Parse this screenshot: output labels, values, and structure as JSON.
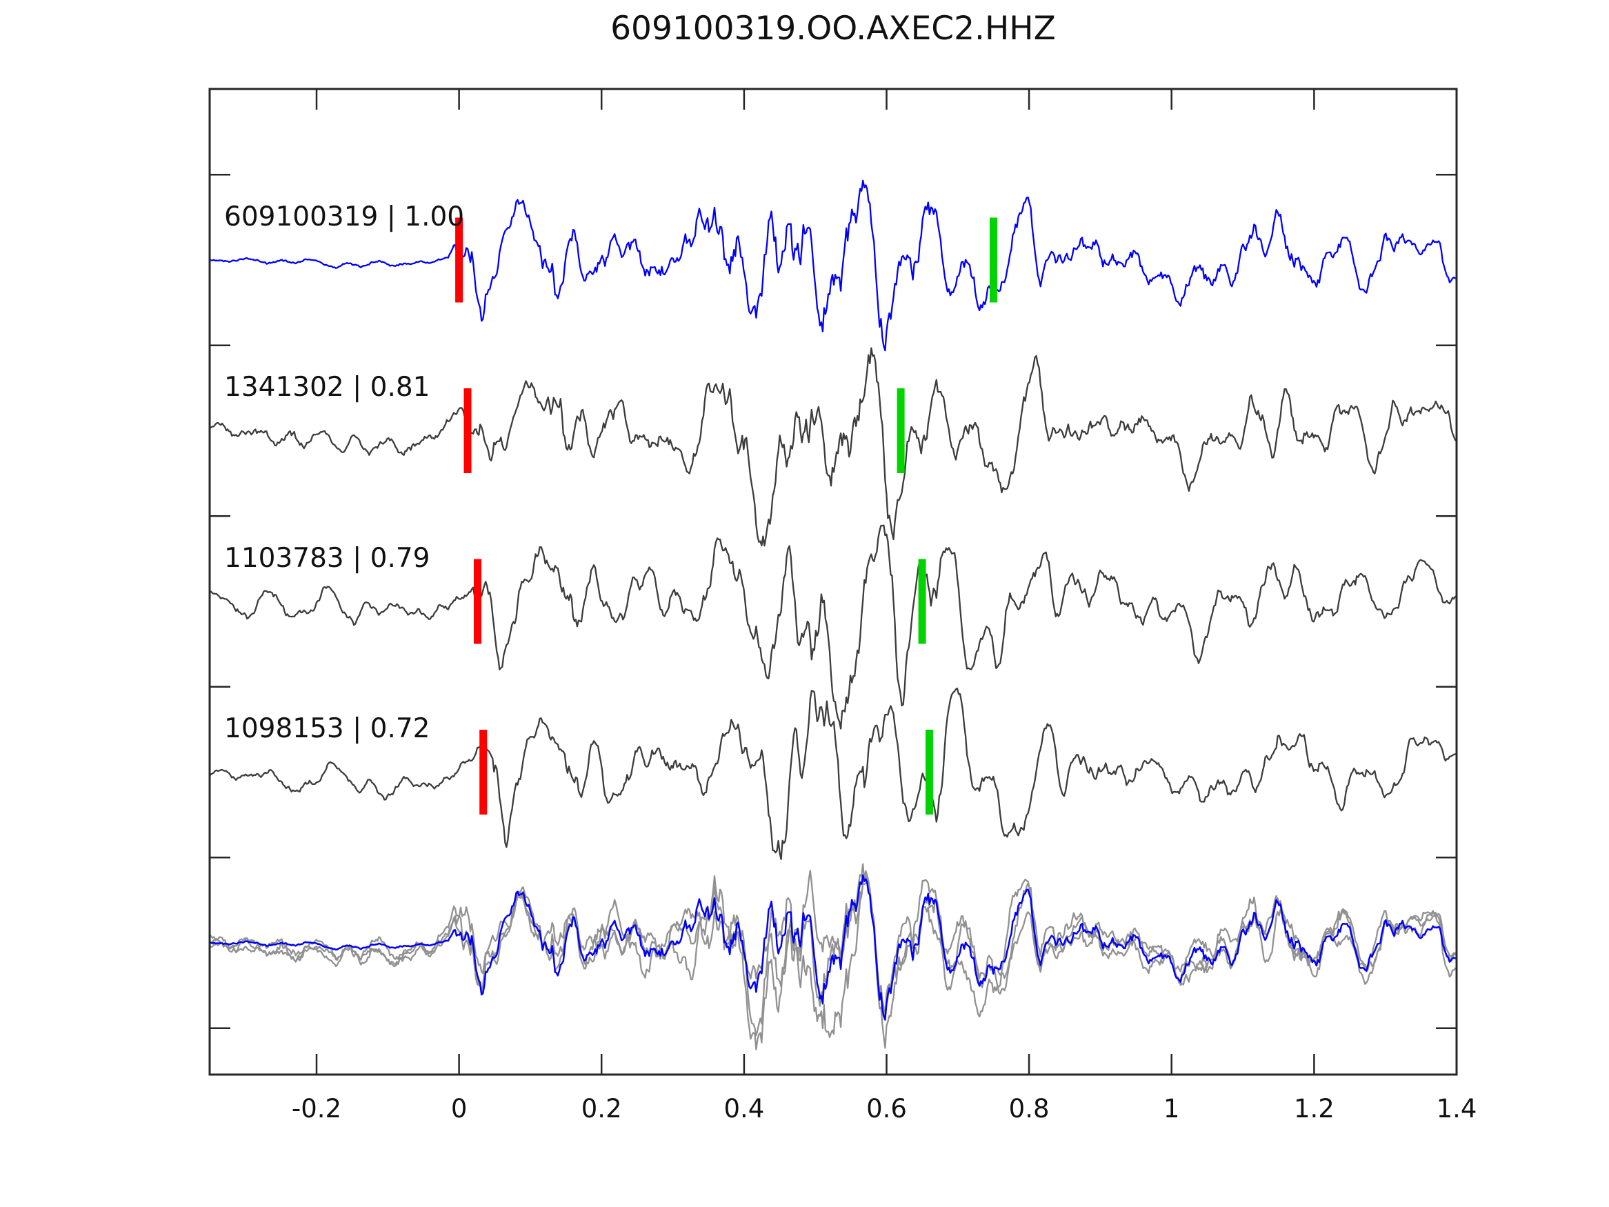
{
  "title": "609100319.OO.AXEC2.HHZ",
  "axis": {
    "xlim": [
      -0.35,
      1.4
    ],
    "x_ticks": [
      {
        "value": -0.2,
        "label": "-0.2"
      },
      {
        "value": 0,
        "label": "0"
      },
      {
        "value": 0.2,
        "label": "0.2"
      },
      {
        "value": 0.4,
        "label": "0.4"
      },
      {
        "value": 0.6,
        "label": "0.6"
      },
      {
        "value": 0.8,
        "label": "0.8"
      },
      {
        "value": 1,
        "label": "1"
      },
      {
        "value": 1.2,
        "label": "1.2"
      },
      {
        "value": 1.4,
        "label": "1.4"
      }
    ]
  },
  "colors": {
    "template_trace": "#0000FF",
    "detection_trace": "#3C3C3C",
    "overlay_trace": "#919191",
    "red_marker": "#FF0000",
    "green_marker": "#00D300",
    "axis": "#262626",
    "text": "#111111"
  },
  "traces": [
    {
      "label": "609100319 | 1.00",
      "id": "609100319",
      "similarity": 1.0,
      "kind": "template",
      "red_pick": 0.0,
      "green_pick": 0.75
    },
    {
      "label": "1341302 | 0.81",
      "id": "1341302",
      "similarity": 0.81,
      "kind": "detection",
      "red_pick": 0.012,
      "green_pick": 0.62
    },
    {
      "label": "1103783 | 0.79",
      "id": "1103783",
      "similarity": 0.79,
      "kind": "detection",
      "red_pick": 0.026,
      "green_pick": 0.65
    },
    {
      "label": "1098153 | 0.72",
      "id": "1098153",
      "similarity": 0.72,
      "kind": "detection",
      "red_pick": 0.034,
      "green_pick": 0.66
    }
  ],
  "overlay_row": {
    "gray_trace_count": 3,
    "has_blue_template": true,
    "markers": "none"
  },
  "chart_data": {
    "type": "line",
    "title": "609100319.OO.AXEC2.HHZ",
    "x_range": [
      -0.35,
      1.4
    ],
    "x_tick_labels": [
      "-0.2",
      "0",
      "0.2",
      "0.4",
      "0.6",
      "0.8",
      "1",
      "1.2",
      "1.4"
    ],
    "grid": false,
    "legend": "none",
    "rows": [
      {
        "row": 1,
        "label": "609100319 | 1.00",
        "similarity": 1.0,
        "line": "blue",
        "red_marker_x": 0.0,
        "green_marker_x": 0.75
      },
      {
        "row": 2,
        "label": "1341302 | 0.81",
        "similarity": 0.81,
        "line": "dark-gray",
        "red_marker_x": 0.012,
        "green_marker_x": 0.62
      },
      {
        "row": 3,
        "label": "1103783 | 0.79",
        "similarity": 0.79,
        "line": "dark-gray",
        "red_marker_x": 0.026,
        "green_marker_x": 0.65
      },
      {
        "row": 4,
        "label": "1098153 | 0.72",
        "similarity": 0.72,
        "line": "dark-gray",
        "red_marker_x": 0.034,
        "green_marker_x": 0.66
      },
      {
        "row": 5,
        "label": "",
        "line": "3 light-gray detections overlaid with blue template, aligned on picks",
        "red_marker_x": null,
        "green_marker_x": null
      }
    ],
    "waveform_note": "band-limited seismogram wiggles; quiet before t=0, onset at red pick, maximum energy near t=0.45-0.55, coda decaying after"
  }
}
